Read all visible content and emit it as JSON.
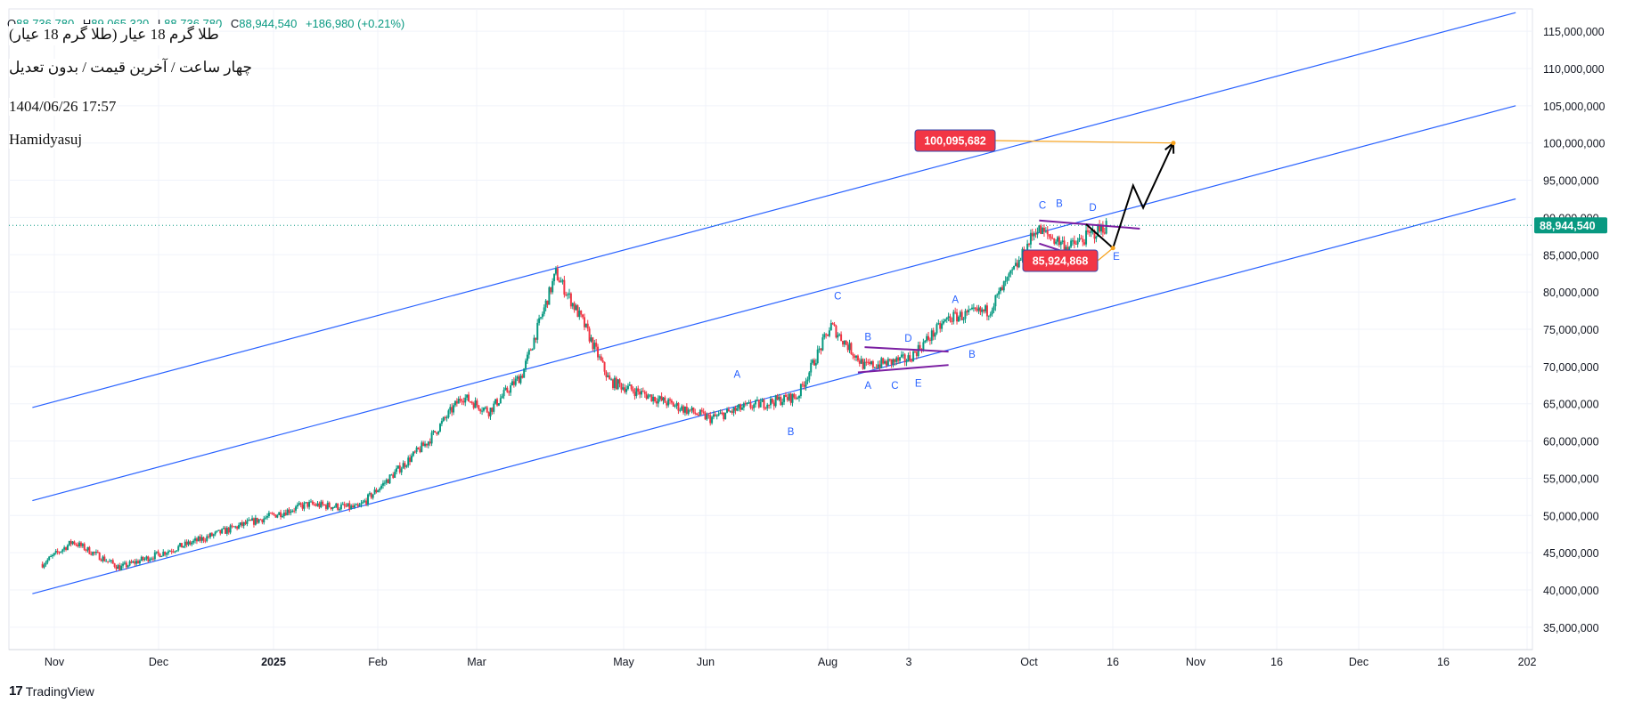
{
  "header": {
    "ohlc": {
      "o_label": "O",
      "o_value": "88,736,780",
      "h_label": "H",
      "h_value": "89,065,320",
      "l_label": "L",
      "l_value": "88,736,780",
      "c_label": "C",
      "c_value": "88,944,540",
      "change": "+186,980 (+0.21%)"
    },
    "symbol_title": "طلا گرم 18 عیار (طلا گرم 18 عیار)",
    "chart_settings": "چهار ساعت / آخرین قیمت / بدون تعدیل",
    "timestamp": "1404/06/26 17:57",
    "author": "Hamidyasuj"
  },
  "branding": {
    "logo": "17",
    "name": "TradingView"
  },
  "colors": {
    "up": "#089981",
    "down": "#f23645",
    "channel": "#2962ff",
    "triangle": "#7b1fa2",
    "wave_label": "#2962ff",
    "price_badge": "#f23645",
    "projection": "#000000",
    "leader": "#f7a21b"
  },
  "chart_data": {
    "type": "candlestick",
    "timeframe": "4h",
    "y_axis": {
      "ylim": [
        32000000,
        118000000
      ],
      "ticks": [
        115000000,
        110000000,
        105000000,
        100000000,
        95000000,
        90000000,
        85000000,
        80000000,
        75000000,
        70000000,
        65000000,
        60000000,
        55000000,
        50000000,
        45000000,
        40000000,
        35000000
      ],
      "tick_labels": [
        "115,000,000",
        "110,000,000",
        "105,000,000",
        "100,000,000",
        "95,000,000",
        "90,000,000",
        "85,000,000",
        "80,000,000",
        "75,000,000",
        "70,000,000",
        "65,000,000",
        "60,000,000",
        "55,000,000",
        "50,000,000",
        "45,000,000",
        "40,000,000",
        "35,000,000"
      ]
    },
    "x_axis": {
      "tick_labels": [
        "Nov",
        "Dec",
        "2025",
        "Feb",
        "Mar",
        "May",
        "Jun",
        "Aug",
        "3",
        "Oct",
        "16",
        "Nov",
        "16",
        "Dec",
        "16",
        "202"
      ],
      "bold_labels": [
        "2025"
      ]
    },
    "last_price": {
      "value": 88944540,
      "label": "88,944,540"
    },
    "price_series_approx": [
      {
        "date": "2024-10-23",
        "price": 43500000
      },
      {
        "date": "2024-11-01",
        "price": 46500000
      },
      {
        "date": "2024-11-15",
        "price": 43000000
      },
      {
        "date": "2024-12-01",
        "price": 45500000
      },
      {
        "date": "2024-12-20",
        "price": 48500000
      },
      {
        "date": "2025-01-10",
        "price": 51500000
      },
      {
        "date": "2025-01-25",
        "price": 51000000
      },
      {
        "date": "2025-02-15",
        "price": 60000000
      },
      {
        "date": "2025-02-25",
        "price": 66000000
      },
      {
        "date": "2025-03-05",
        "price": 64000000
      },
      {
        "date": "2025-03-15",
        "price": 69000000
      },
      {
        "date": "2025-03-25",
        "price": 82500000
      },
      {
        "date": "2025-04-02",
        "price": 76000000
      },
      {
        "date": "2025-04-10",
        "price": 68000000
      },
      {
        "date": "2025-04-25",
        "price": 65500000
      },
      {
        "date": "2025-05-10",
        "price": 63000000
      },
      {
        "date": "2025-05-20",
        "price": 64500000
      },
      {
        "date": "2025-06-05",
        "price": 66000000
      },
      {
        "date": "2025-06-15",
        "price": 75500000
      },
      {
        "date": "2025-06-25",
        "price": 70000000
      },
      {
        "date": "2025-07-08",
        "price": 71000000
      },
      {
        "date": "2025-07-20",
        "price": 76500000
      },
      {
        "date": "2025-08-01",
        "price": 77500000
      },
      {
        "date": "2025-08-10",
        "price": 84000000
      },
      {
        "date": "2025-08-15",
        "price": 88500000
      },
      {
        "date": "2025-08-25",
        "price": 86000000
      },
      {
        "date": "2025-09-05",
        "price": 88900000
      }
    ],
    "drawings": {
      "channel_lines": [
        {
          "name": "upper",
          "start": {
            "date": "2024-10-20",
            "price": 64500000
          },
          "end": {
            "date": "2026-01-05",
            "price": 117500000
          }
        },
        {
          "name": "middle",
          "start": {
            "date": "2024-10-20",
            "price": 52000000
          },
          "end": {
            "date": "2026-01-05",
            "price": 105000000
          }
        },
        {
          "name": "lower",
          "start": {
            "date": "2024-10-20",
            "price": 39500000
          },
          "end": {
            "date": "2026-01-05",
            "price": 92500000
          }
        }
      ],
      "triangles": [
        {
          "upper": [
            {
              "date": "2025-06-25",
              "price": 72600000
            },
            {
              "date": "2025-07-20",
              "price": 72000000
            }
          ],
          "lower": [
            {
              "date": "2025-06-23",
              "price": 69200000
            },
            {
              "date": "2025-07-20",
              "price": 70200000
            }
          ]
        },
        {
          "upper": [
            {
              "date": "2025-08-16",
              "price": 89600000
            },
            {
              "date": "2025-09-15",
              "price": 88500000
            }
          ],
          "lower": [
            {
              "date": "2025-08-16",
              "price": 86500000
            },
            {
              "date": "2025-09-02",
              "price": 84000000
            }
          ]
        }
      ],
      "wave_labels": [
        {
          "text": "A",
          "date": "2025-05-18",
          "price": 68500000
        },
        {
          "text": "B",
          "date": "2025-06-03",
          "price": 60800000
        },
        {
          "text": "C",
          "date": "2025-06-17",
          "price": 79000000
        },
        {
          "text": "B",
          "date": "2025-06-26",
          "price": 73500000
        },
        {
          "text": "D",
          "date": "2025-07-08",
          "price": 73300000
        },
        {
          "text": "A",
          "date": "2025-06-26",
          "price": 67000000
        },
        {
          "text": "C",
          "date": "2025-07-04",
          "price": 67000000
        },
        {
          "text": "E",
          "date": "2025-07-11",
          "price": 67300000
        },
        {
          "text": "A",
          "date": "2025-07-22",
          "price": 78500000
        },
        {
          "text": "B",
          "date": "2025-07-27",
          "price": 71200000
        },
        {
          "text": "C",
          "date": "2025-08-17",
          "price": 91200000
        },
        {
          "text": "B",
          "date": "2025-08-22",
          "price": 91400000
        },
        {
          "text": "D",
          "date": "2025-09-01",
          "price": 90900000
        },
        {
          "text": "A",
          "date": "2025-08-19",
          "price": 84300000
        },
        {
          "text": "C",
          "date": "2025-08-31",
          "price": 83000000
        },
        {
          "text": "E",
          "date": "2025-09-08",
          "price": 84300000
        }
      ],
      "projection_path": [
        {
          "date": "2025-08-30",
          "price": 89100000
        },
        {
          "date": "2025-09-07",
          "price": 85900000
        },
        {
          "date": "2025-09-13",
          "price": 94300000
        },
        {
          "date": "2025-09-16",
          "price": 91300000
        },
        {
          "date": "2025-09-25",
          "price": 100000000
        }
      ],
      "price_labels": [
        {
          "text": "100,095,682",
          "value": 100095682
        },
        {
          "text": "85,924,868",
          "value": 85924868
        }
      ]
    }
  }
}
